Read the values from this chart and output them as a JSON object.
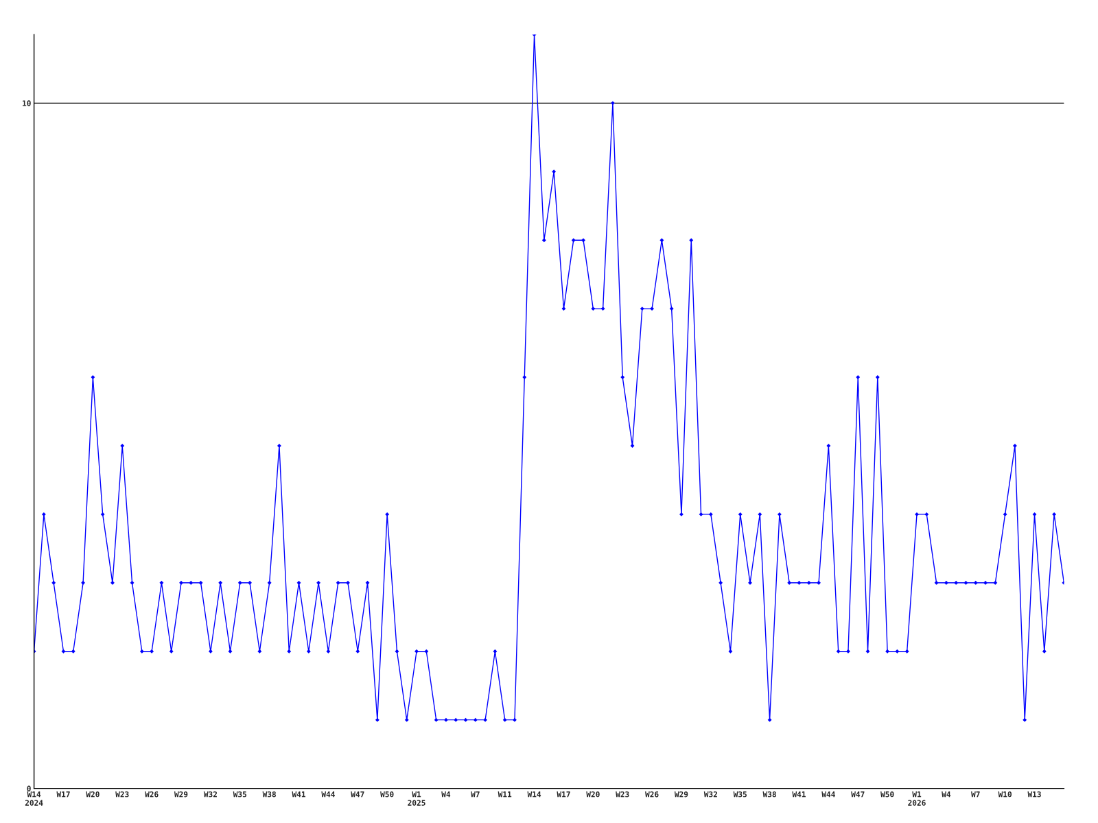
{
  "chart_data": {
    "type": "line",
    "categories": [
      "W14\n2024",
      null,
      null,
      "W17",
      null,
      null,
      "W20",
      null,
      null,
      "W23",
      null,
      null,
      "W26",
      null,
      null,
      "W29",
      null,
      null,
      "W32",
      null,
      null,
      "W35",
      null,
      null,
      "W38",
      null,
      null,
      "W41",
      null,
      null,
      "W44",
      null,
      null,
      "W47",
      null,
      null,
      "W50",
      null,
      null,
      "W1\n2025",
      null,
      null,
      "W4",
      null,
      null,
      "W7",
      null,
      null,
      "W11",
      null,
      null,
      "W14",
      null,
      null,
      "W17",
      null,
      null,
      "W20",
      null,
      null,
      "W23",
      null,
      null,
      "W26",
      null,
      null,
      "W29",
      null,
      null,
      "W32",
      null,
      null,
      "W35",
      null,
      null,
      "W38",
      null,
      null,
      "W41",
      null,
      null,
      "W44",
      null,
      null,
      "W47",
      null,
      null,
      "W50",
      null,
      null,
      "W1\n2026",
      null,
      null,
      "W4",
      null,
      null,
      "W7",
      null,
      null,
      "W10",
      null,
      null,
      "W13",
      null,
      null,
      null
    ],
    "series": [
      {
        "color": "#0000ff",
        "values": [
          2,
          4,
          3,
          2,
          2,
          3,
          6,
          4,
          3,
          5,
          3,
          2,
          2,
          3,
          2,
          3,
          3,
          3,
          2,
          3,
          2,
          3,
          3,
          2,
          3,
          5,
          2,
          3,
          2,
          3,
          2,
          3,
          3,
          2,
          3,
          1,
          4,
          2,
          1,
          2,
          2,
          1,
          1,
          1,
          1,
          1,
          1,
          2,
          1,
          1,
          6,
          11,
          8,
          9,
          7,
          8,
          8,
          7,
          7,
          10,
          6,
          5,
          7,
          7,
          8,
          7,
          4,
          8,
          4,
          4,
          3,
          2,
          4,
          3,
          4,
          1,
          4,
          3,
          3,
          3,
          3,
          5,
          2,
          2,
          6,
          2,
          6,
          2,
          2,
          2,
          4,
          4,
          3,
          3,
          3,
          3,
          3,
          3,
          3,
          4,
          5,
          1,
          4,
          2,
          4,
          3
        ]
      }
    ],
    "ylim": [
      0,
      11
    ],
    "yticks": [
      0,
      10
    ],
    "grid": "y",
    "marker": "diamond"
  }
}
